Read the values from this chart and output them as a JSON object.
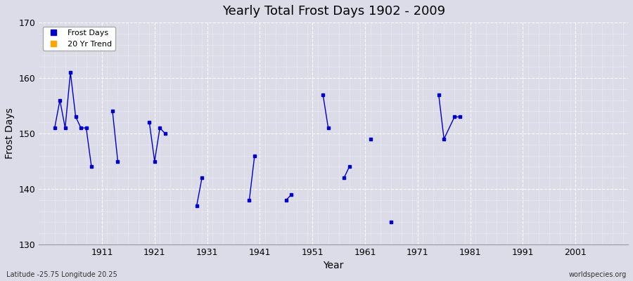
{
  "title": "Yearly Total Frost Days 1902 - 2009",
  "xlabel": "Year",
  "ylabel": "Frost Days",
  "lat_lon_label": "Latitude -25.75 Longitude 20.25",
  "watermark": "worldspecies.org",
  "xlim": [
    1899,
    2011
  ],
  "ylim": [
    130,
    170
  ],
  "yticks": [
    130,
    140,
    150,
    160,
    170
  ],
  "xticks": [
    1911,
    1921,
    1931,
    1941,
    1951,
    1961,
    1971,
    1981,
    1991,
    2001
  ],
  "bg_color": "#dcdce8",
  "plot_bg_color": "#dcdce8",
  "grid_color": "#ffffff",
  "line_color": "#0000cc",
  "frost_days_data": [
    [
      1902,
      151
    ],
    [
      1903,
      156
    ],
    [
      1904,
      151
    ],
    [
      1905,
      161
    ],
    [
      1906,
      153
    ],
    [
      1907,
      151
    ],
    [
      1908,
      151
    ],
    [
      1909,
      144
    ],
    [
      1913,
      154
    ],
    [
      1914,
      145
    ],
    [
      1920,
      152
    ],
    [
      1921,
      145
    ],
    [
      1922,
      151
    ],
    [
      1923,
      150
    ],
    [
      1929,
      137
    ],
    [
      1930,
      142
    ],
    [
      1939,
      138
    ],
    [
      1940,
      146
    ],
    [
      1946,
      138
    ],
    [
      1947,
      139
    ],
    [
      1953,
      157
    ],
    [
      1954,
      151
    ],
    [
      1957,
      142
    ],
    [
      1958,
      144
    ],
    [
      1962,
      149
    ],
    [
      1966,
      134
    ],
    [
      1975,
      157
    ],
    [
      1976,
      149
    ],
    [
      1978,
      153
    ],
    [
      1979,
      153
    ]
  ],
  "legend_frost_color": "#0000cc",
  "legend_trend_color": "#ffa500",
  "legend_frost_label": "Frost Days",
  "legend_trend_label": "20 Yr Trend"
}
